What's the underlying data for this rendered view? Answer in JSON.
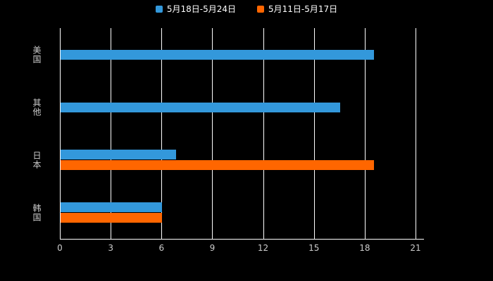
{
  "legend": {
    "items": [
      {
        "label": "5月18日-5月24日",
        "color": "#3398db"
      },
      {
        "label": "5月11日-5月17日",
        "color": "#ff6600"
      }
    ]
  },
  "chart_data": {
    "type": "bar",
    "orientation": "horizontal",
    "title": "",
    "categories": [
      "美国",
      "其他",
      "日本",
      "韩国"
    ],
    "series": [
      {
        "name": "5月18日-5月24日",
        "color": "#3398db",
        "values": [
          18.5,
          16.5,
          6.8,
          6
        ]
      },
      {
        "name": "5月11日-5月17日",
        "color": "#ff6600",
        "values": [
          null,
          null,
          18.5,
          6
        ]
      }
    ],
    "xlim": [
      0,
      21
    ],
    "xticks": [
      0,
      3,
      6,
      9,
      12,
      15,
      18,
      21
    ],
    "grid": true,
    "legend_position": "top",
    "background": "#000000",
    "text_color": "#cccccc",
    "grid_color": "#ffffff"
  }
}
